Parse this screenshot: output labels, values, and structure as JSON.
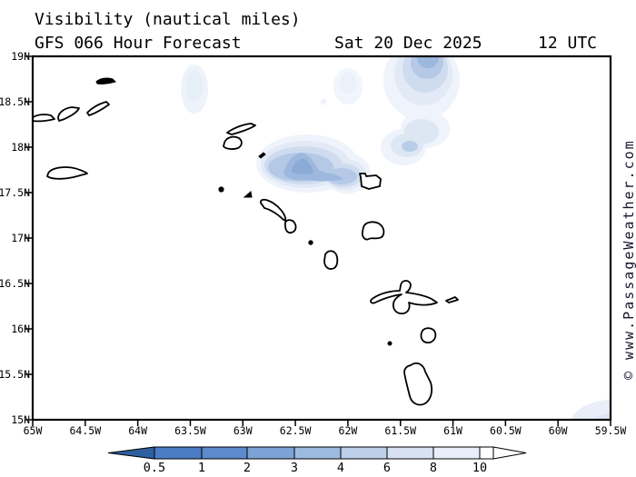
{
  "header": {
    "title": "Visibility (nautical miles)",
    "model_line": "GFS 066 Hour Forecast",
    "valid_date": "Sat 20 Dec 2025",
    "valid_time": "12 UTC"
  },
  "watermark": {
    "text": "© www.PassageWeather.com"
  },
  "axes": {
    "lat_labels": [
      "19N",
      "18.5N",
      "18N",
      "17.5N",
      "17N",
      "16.5N",
      "16N",
      "15.5N",
      "15N"
    ],
    "lon_labels": [
      "65W",
      "64.5W",
      "64W",
      "63.5W",
      "63W",
      "62.5W",
      "62W",
      "61.5W",
      "61W",
      "60.5W",
      "60W",
      "59.5W"
    ]
  },
  "colorbar": {
    "unit": "nautical miles",
    "labels": [
      "0.5",
      "1",
      "2",
      "3",
      "4",
      "6",
      "8",
      "10"
    ],
    "segment_colors": [
      "#4a7dc3",
      "#5d8aca",
      "#7da2d5",
      "#9dbae1",
      "#bccfe9",
      "#d8e1f2",
      "#e9eef8",
      "#ffffff"
    ],
    "underflow_color": "#2e5f9f",
    "overflow_color": "#ffffff"
  },
  "chart_data": {
    "type": "heatmap",
    "title": "Visibility (nautical miles)",
    "model": "GFS",
    "forecast_hour": 66,
    "valid": "Sat 20 Dec 2025 12 UTC",
    "lon_range_deg_west": [
      65,
      59.5
    ],
    "lat_range_deg_north": [
      15,
      19
    ],
    "scale_values_nm": [
      0.5,
      1,
      2,
      3,
      4,
      6,
      8,
      10
    ],
    "shading_note": "darker blue = lower visibility; white = 10+ nm",
    "reduced_visibility_areas": [
      {
        "center": "62.4W 17.8N",
        "approx_min_nm": 3
      },
      {
        "center": "61.3W 18.9N",
        "approx_min_nm": 4
      },
      {
        "center": "61.4W 18.1N",
        "approx_min_nm": 4
      },
      {
        "center": "63.5W 18.6N",
        "approx_min_nm": 8
      },
      {
        "center": "62.0W 18.7N",
        "approx_min_nm": 10
      },
      {
        "center": "59.5W 15.0N",
        "approx_min_nm": 8
      }
    ]
  }
}
